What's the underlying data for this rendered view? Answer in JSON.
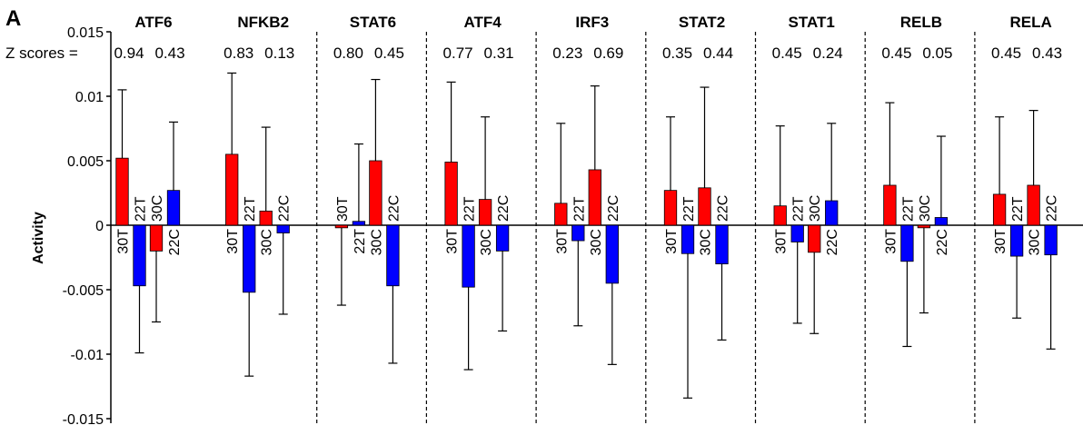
{
  "panel_label": "A",
  "z_label": "Z scores =",
  "colors": {
    "treated": "#ff0000",
    "control": "#0000ff",
    "axis": "#000000"
  },
  "chart_data": {
    "type": "bar",
    "ylabel": "Activity",
    "ylim": [
      -0.015,
      0.015
    ],
    "yticks": [
      0.015,
      0.01,
      0.005,
      0,
      -0.005,
      -0.01,
      -0.015
    ],
    "ytick_labels": [
      "0.015",
      "0.01",
      "0.005",
      "0",
      "-0.005",
      "-0.01",
      "-0.015"
    ],
    "categories": [
      "30T",
      "22T",
      "30C",
      "22C"
    ],
    "groups": [
      {
        "name": "ATF6",
        "z": [
          "0.94",
          "0.43"
        ],
        "values": [
          0.0052,
          -0.0047,
          -0.002,
          0.0027
        ],
        "errors": [
          0.0053,
          0.0052,
          0.0055,
          0.0053
        ]
      },
      {
        "name": "NFKB2",
        "z": [
          "0.83",
          "0.13"
        ],
        "values": [
          0.0055,
          -0.0052,
          0.0011,
          -0.0006
        ],
        "errors": [
          0.0063,
          0.0065,
          0.0065,
          0.0063
        ]
      },
      {
        "name": "STAT6",
        "z": [
          "0.80",
          "0.45"
        ],
        "values": [
          -0.0002,
          0.0003,
          0.005,
          -0.0047
        ],
        "errors": [
          0.006,
          0.006,
          0.0063,
          0.006
        ]
      },
      {
        "name": "ATF4",
        "z": [
          "0.77",
          "0.31"
        ],
        "values": [
          0.0049,
          -0.0048,
          0.002,
          -0.002
        ],
        "errors": [
          0.0062,
          0.0064,
          0.0064,
          0.0062
        ]
      },
      {
        "name": "IRF3",
        "z": [
          "0.23",
          "0.69"
        ],
        "values": [
          0.0017,
          -0.0012,
          0.0043,
          -0.0045
        ],
        "errors": [
          0.0062,
          0.0066,
          0.0065,
          0.0063
        ]
      },
      {
        "name": "STAT2",
        "z": [
          "0.35",
          "0.44"
        ],
        "values": [
          0.0027,
          -0.0022,
          0.0029,
          -0.003
        ],
        "errors": [
          0.0057,
          0.0112,
          0.0078,
          0.0059
        ]
      },
      {
        "name": "STAT1",
        "z": [
          "0.45",
          "0.24"
        ],
        "values": [
          0.0015,
          -0.0013,
          -0.0021,
          0.0019
        ],
        "errors": [
          0.0062,
          0.0063,
          0.0063,
          0.006
        ]
      },
      {
        "name": "RELB",
        "z": [
          "0.45",
          "0.05"
        ],
        "values": [
          0.0031,
          -0.0028,
          -0.0002,
          0.0006
        ],
        "errors": [
          0.0064,
          0.0066,
          0.0066,
          0.0063
        ]
      },
      {
        "name": "RELA",
        "z": [
          "0.45",
          "0.43"
        ],
        "values": [
          0.0024,
          -0.0024,
          0.0031,
          -0.0023
        ],
        "errors": [
          0.006,
          0.0048,
          0.0058,
          0.0073
        ]
      }
    ]
  }
}
